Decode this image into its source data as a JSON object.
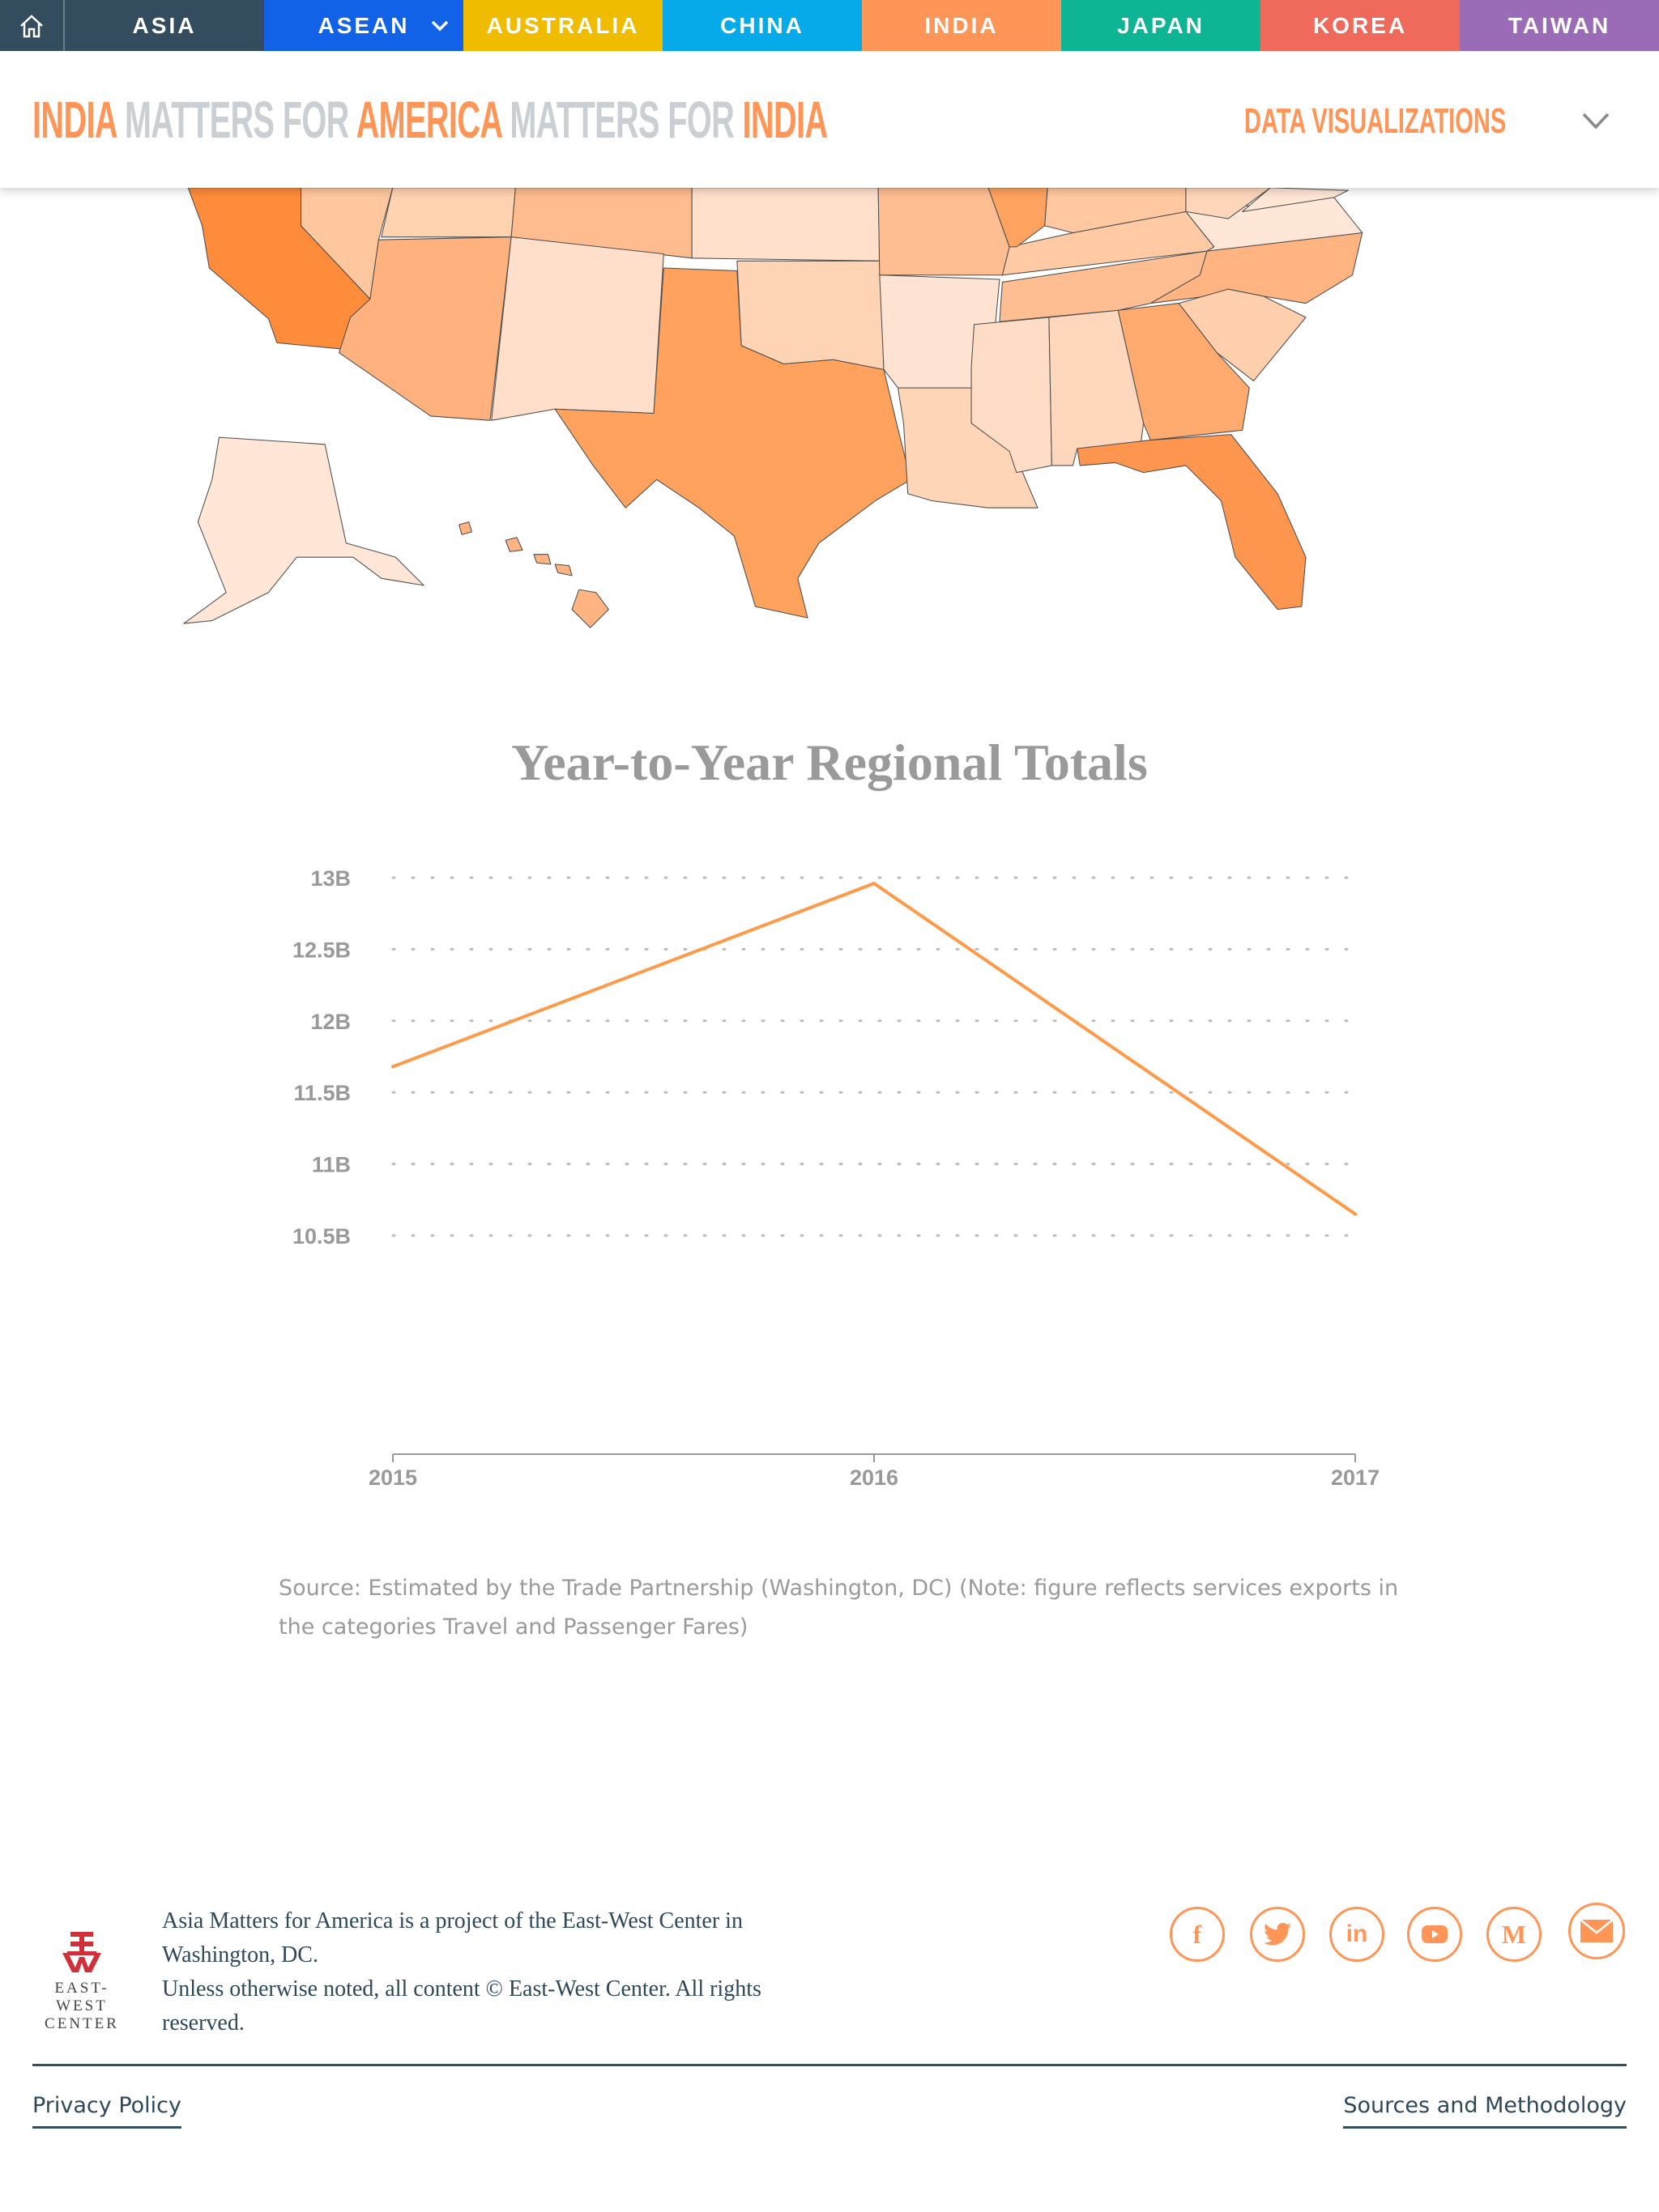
{
  "nav": {
    "items": [
      {
        "label": "ASIA",
        "color": "#344d5e"
      },
      {
        "label": "ASEAN",
        "color": "#1262e8"
      },
      {
        "label": "AUSTRALIA",
        "color": "#f0bc00"
      },
      {
        "label": "CHINA",
        "color": "#06aae8"
      },
      {
        "label": "INDIA",
        "color": "#ff9557"
      },
      {
        "label": "JAPAN",
        "color": "#0db594"
      },
      {
        "label": "KOREA",
        "color": "#ef6a5b"
      },
      {
        "label": "TAIWAN",
        "color": "#9a6cb7"
      }
    ]
  },
  "header": {
    "title_parts": [
      "INDIA",
      "MATTERS FOR",
      "AMERICA",
      "MATTERS FOR",
      "INDIA"
    ],
    "menu_label": "DATA VISUALIZATIONS"
  },
  "chart_data": {
    "type": "line",
    "title": "Year-to-Year Regional Totals",
    "x": [
      "2015",
      "2016",
      "2017"
    ],
    "series": [
      {
        "values": [
          11.68,
          12.96,
          10.65
        ],
        "color": "#ff9a4a"
      }
    ],
    "ylim": [
      10.5,
      13
    ],
    "yticks": [
      13,
      12.5,
      12,
      11.5,
      11,
      10.5
    ],
    "ytick_labels": [
      "13B",
      "12.5B",
      "12B",
      "11.5B",
      "11B",
      "10.5B"
    ],
    "grid": "horizontal-dotted",
    "unit": "B"
  },
  "source": "Source: Estimated by the Trade Partnership (Washington, DC) (Note: figure reflects services exports in the categories Travel and Passenger Fares)",
  "footer": {
    "logo_text": [
      "EAST-WEST",
      "CENTER"
    ],
    "lines": [
      "Asia Matters for America is a project of the East-West Center in Washington, DC.",
      "Unless otherwise noted, all content © East-West Center. All rights reserved."
    ],
    "social": [
      "facebook-icon",
      "twitter-icon",
      "linkedin-icon",
      "youtube-icon",
      "medium-icon",
      "email-icon"
    ],
    "privacy": "Privacy Policy",
    "sources": "Sources and Methodology"
  }
}
